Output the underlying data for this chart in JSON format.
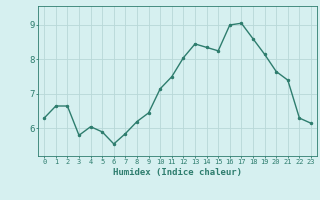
{
  "x": [
    0,
    1,
    2,
    3,
    4,
    5,
    6,
    7,
    8,
    9,
    10,
    11,
    12,
    13,
    14,
    15,
    16,
    17,
    18,
    19,
    20,
    21,
    22,
    23
  ],
  "y": [
    6.3,
    6.65,
    6.65,
    5.8,
    6.05,
    5.9,
    5.55,
    5.85,
    6.2,
    6.45,
    7.15,
    7.5,
    8.05,
    8.45,
    8.35,
    8.25,
    9.0,
    9.05,
    8.6,
    8.15,
    7.65,
    7.4,
    6.3,
    6.15
  ],
  "xlabel": "Humidex (Indice chaleur)",
  "line_color": "#2e7d6e",
  "bg_color": "#d6f0f0",
  "grid_color": "#b8d8d8",
  "tick_color": "#2e7d6e",
  "label_color": "#2e7d6e",
  "ylim": [
    5.2,
    9.55
  ],
  "yticks": [
    6,
    7,
    8,
    9
  ],
  "xticks": [
    0,
    1,
    2,
    3,
    4,
    5,
    6,
    7,
    8,
    9,
    10,
    11,
    12,
    13,
    14,
    15,
    16,
    17,
    18,
    19,
    20,
    21,
    22,
    23
  ],
  "figsize": [
    3.2,
    2.0
  ],
  "dpi": 100
}
